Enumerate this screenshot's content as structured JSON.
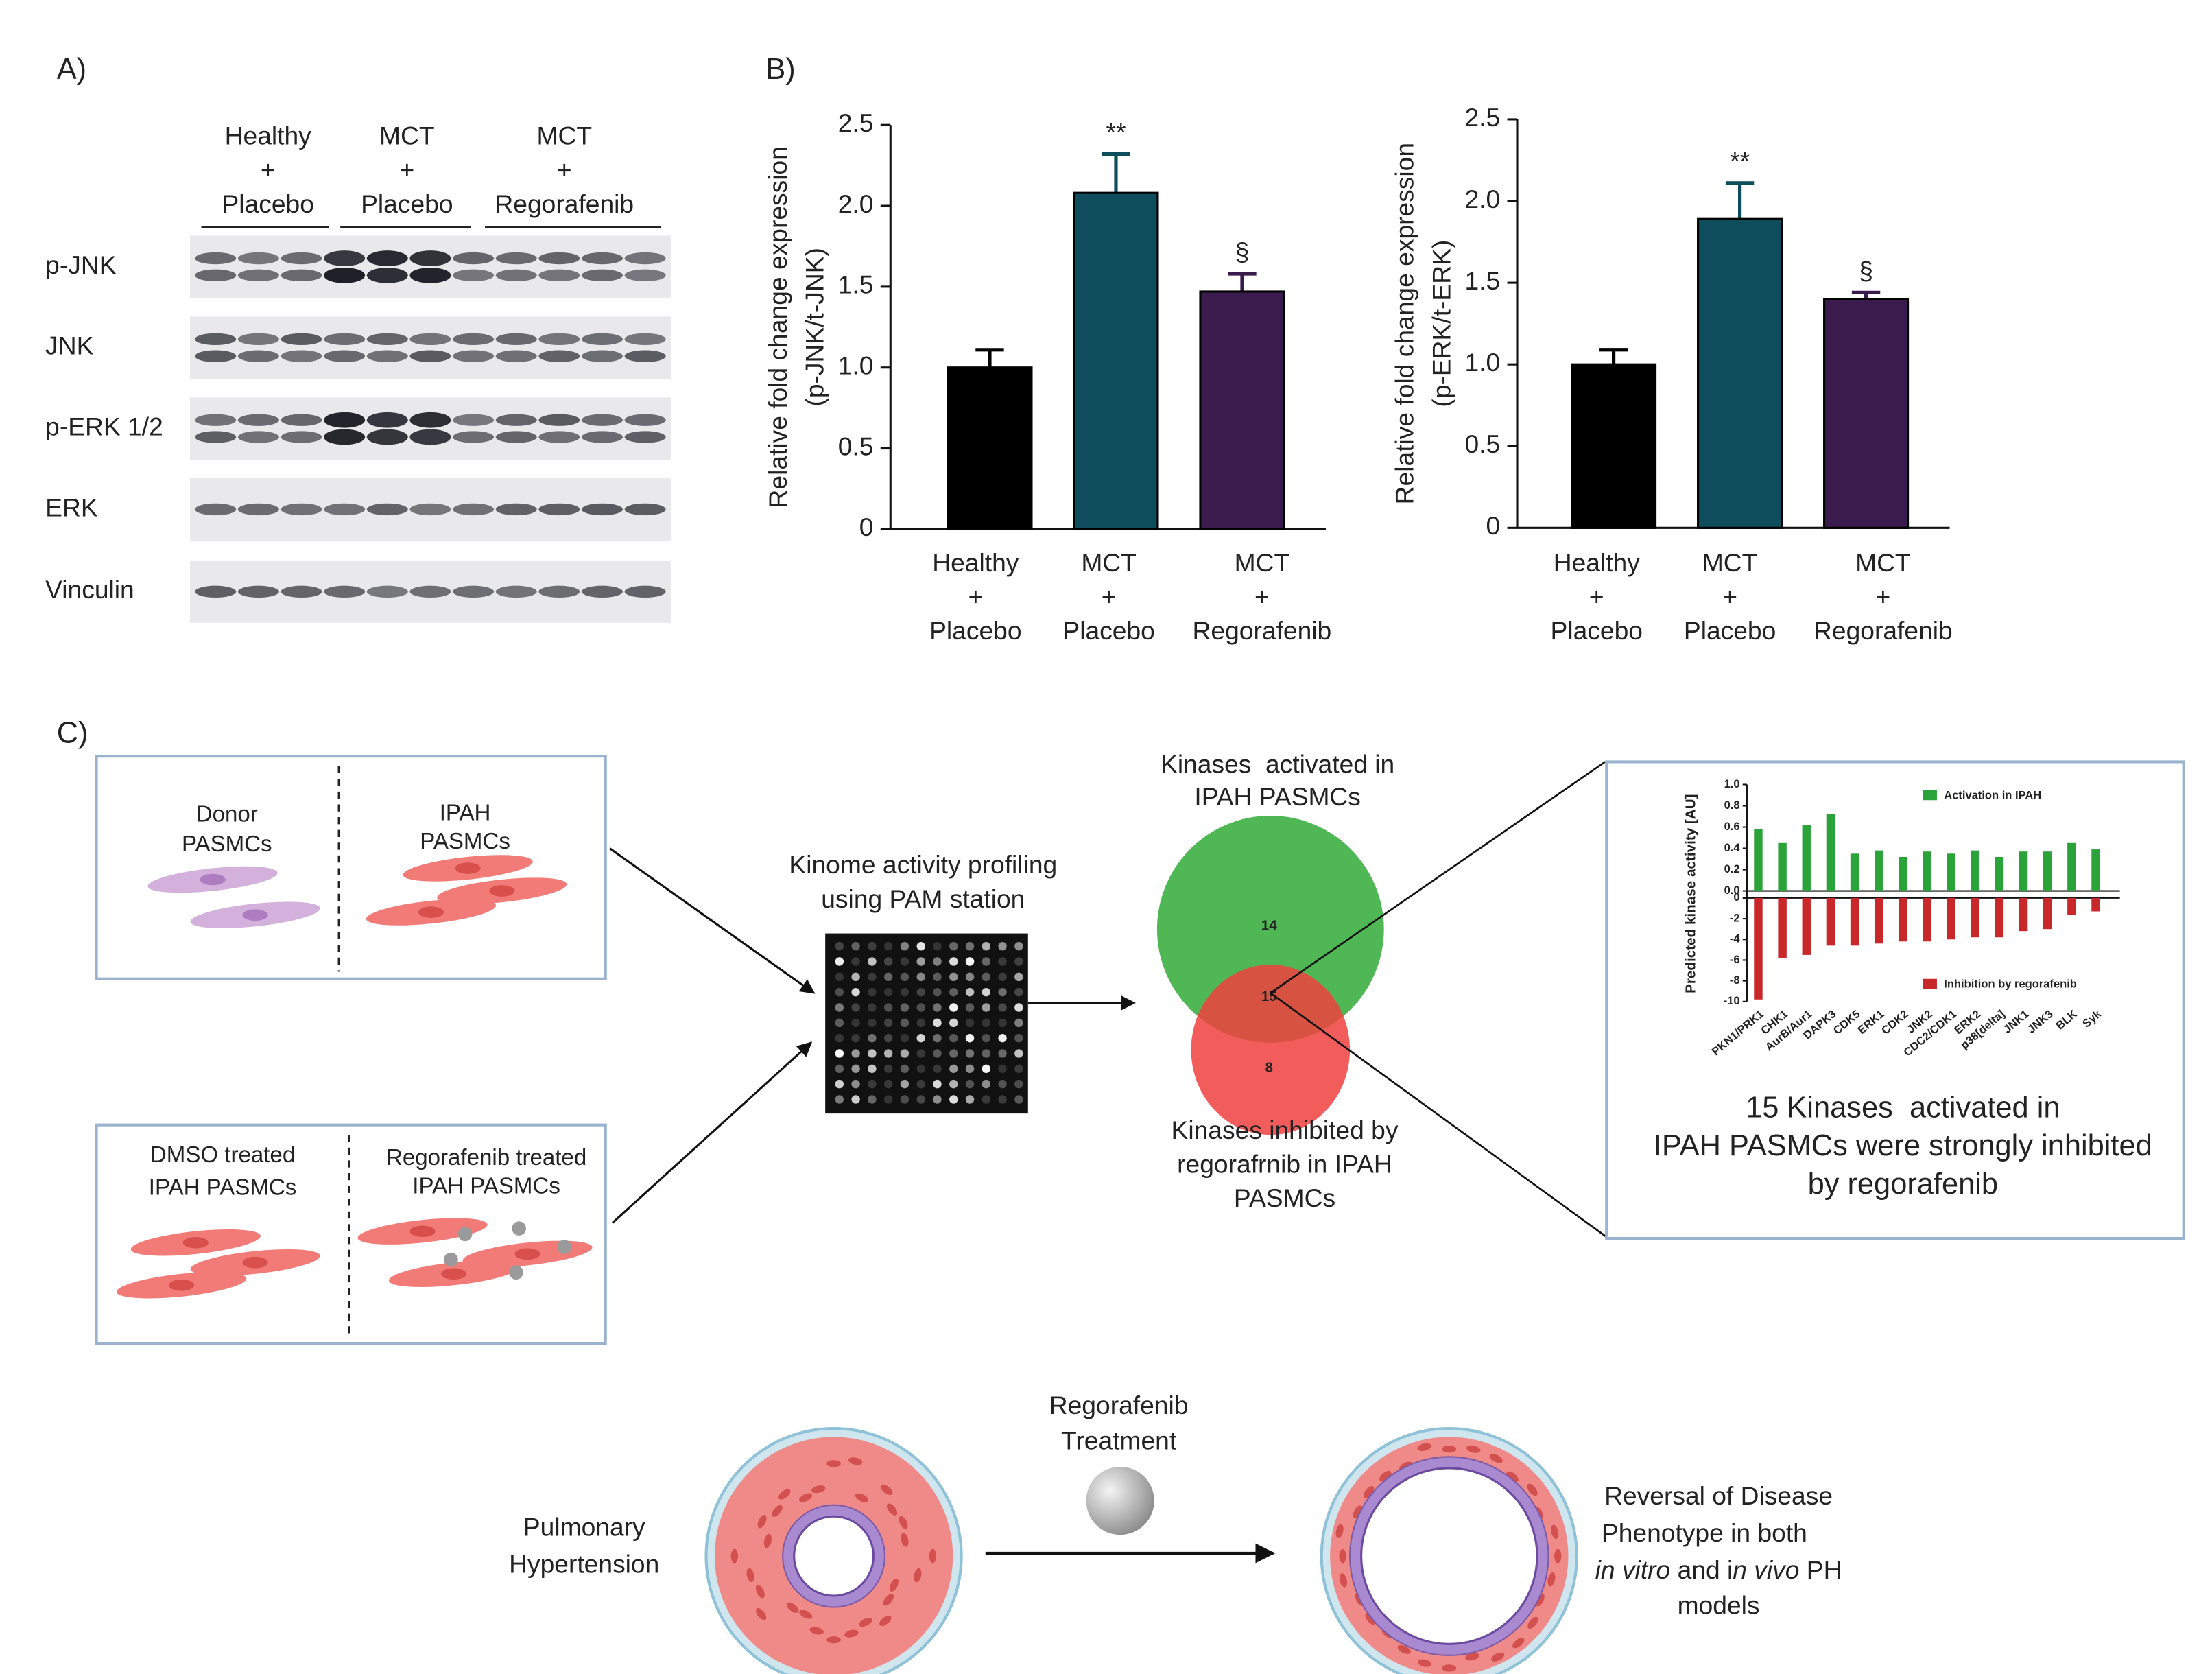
{
  "panels": [
    "A)",
    "B)",
    "C)"
  ],
  "blot": {
    "groups": [
      [
        "Healthy",
        "+",
        "Placebo"
      ],
      [
        "MCT",
        "+",
        "Placebo"
      ],
      [
        "MCT",
        "+",
        "Regorafenib"
      ]
    ],
    "rows": [
      "p-JNK",
      "JNK",
      "p-ERK 1/2",
      "ERK",
      "Vinculin"
    ]
  },
  "chart_data": [
    {
      "type": "bar",
      "y_label": [
        "Relative fold change expression",
        "(p-JNK/t-JNK)"
      ],
      "categories": [
        [
          "Healthy",
          "+",
          "Placebo"
        ],
        [
          "MCT",
          "+",
          "Placebo"
        ],
        [
          "MCT",
          "+",
          "Regorafenib"
        ]
      ],
      "values": [
        1.0,
        2.08,
        1.47
      ],
      "errors": [
        0.11,
        0.24,
        0.11
      ],
      "value_annotations": [
        null,
        "**",
        "§"
      ],
      "colors": [
        "#000000",
        "#0d4d5c",
        "#3b1a4e"
      ],
      "ylim": [
        0,
        2.5
      ],
      "yticks": [
        0,
        0.5,
        {
          "value": 1,
          "label": "1.0"
        },
        1.5,
        {
          "value": 2,
          "label": "2.0"
        },
        2.5
      ]
    },
    {
      "type": "bar",
      "y_label": [
        "Relative fold change expression",
        "(p-ERK/t-ERK)"
      ],
      "categories": [
        [
          "Healthy",
          "+",
          "Placebo"
        ],
        [
          "MCT",
          "+",
          "Placebo"
        ],
        [
          "MCT",
          "+",
          "Regorafenib"
        ]
      ],
      "values": [
        1.0,
        1.89,
        1.4
      ],
      "errors": [
        0.09,
        0.22,
        0.04
      ],
      "value_annotations": [
        null,
        "**",
        "§"
      ],
      "colors": [
        "#000000",
        "#0d4d5c",
        "#3b1a4e"
      ],
      "ylim": [
        0,
        2.5
      ],
      "yticks": [
        0,
        0.5,
        {
          "value": 1,
          "label": "1.0"
        },
        1.5,
        {
          "value": 2,
          "label": "2.0"
        },
        2.5
      ]
    },
    {
      "type": "bar",
      "y_label": "Predicted kinase activity [AU]",
      "categories": [
        "PKN1/PRK1",
        "CHK1",
        "AurB/Aur1",
        "DAPK3",
        "CDK5",
        "ERK1",
        "CDK2",
        "JNK2",
        "CDC2/CDK1",
        "ERK2",
        "p38[delta]",
        "JNK1",
        "JNK3",
        "BLK",
        "Syk"
      ],
      "series": [
        {
          "name": "Activation in IPAH",
          "color": "#2ca33a",
          "values": [
            0.58,
            0.45,
            0.62,
            0.72,
            0.35,
            0.38,
            0.32,
            0.37,
            0.35,
            0.38,
            0.32,
            0.37,
            0.37,
            0.45,
            0.39
          ]
        },
        {
          "name": "Inhibition by regorafenib",
          "color": "#c8282a",
          "axis": "y2",
          "values": [
            -9.8,
            -5.8,
            -5.5,
            -4.6,
            -4.6,
            -4.4,
            -4.2,
            -4.2,
            -4.0,
            -3.8,
            -3.8,
            -3.2,
            -3.0,
            -1.6,
            -1.3
          ]
        }
      ],
      "ylim": [
        0,
        1
      ],
      "yticks": [
        {
          "value": 0,
          "label": "0.0"
        },
        0.2,
        0.4,
        0.6,
        0.8,
        {
          "value": 1,
          "label": "1.0"
        }
      ],
      "y2lim": [
        -10,
        0
      ],
      "y2ticks": [
        -10,
        -8,
        -6,
        -4,
        -2,
        0
      ]
    }
  ],
  "diagram": {
    "donor": [
      "Donor",
      "PASMCs"
    ],
    "ipah": [
      "IPAH",
      "PASMCs"
    ],
    "dmso": [
      "DMSO treated",
      "IPAH PASMCs"
    ],
    "rego": [
      "Regorafenib treated",
      "IPAH PASMCs"
    ],
    "kinome": [
      "Kinome activity profiling",
      "using PAM station"
    ],
    "venn_top": [
      "Kinases  activated in",
      "IPAH PASMCs"
    ],
    "venn_bottom": [
      "Kinases inhibited by",
      "regorafrnib in IPAH",
      "PASMCs"
    ],
    "venn_numbers": [
      "14",
      "15",
      "8"
    ],
    "conclusion": [
      "15 Kinases  activated in",
      "IPAH PASMCs were strongly inhibited",
      "by regorafenib"
    ],
    "ph": [
      "Pulmonary",
      "Hypertension"
    ],
    "treatment": [
      "Regorafenib",
      "Treatment"
    ],
    "reversal": [
      "Reversal of Disease",
      "Phenotype in both",
      [
        "in vitro",
        " and i",
        "n vivo",
        " PH"
      ],
      "models"
    ]
  }
}
